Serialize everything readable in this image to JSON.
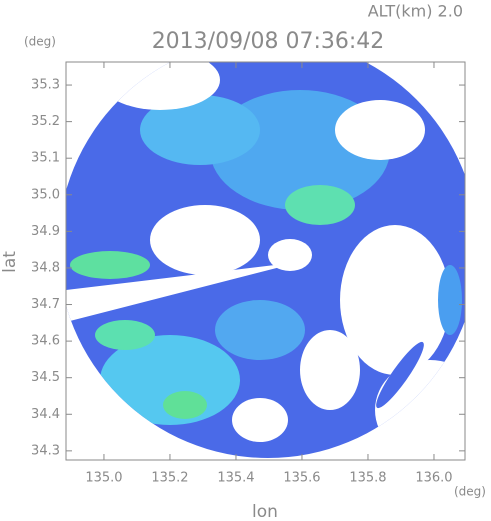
{
  "chart_data": {
    "type": "radar-map",
    "title": "2013/09/08 07:36:42",
    "altitude_label": "ALT(km) 2.0",
    "y_unit": "(deg)",
    "x_unit": "(deg)",
    "xlabel": "lon",
    "ylabel": "lat",
    "xlim": [
      134.885,
      136.094
    ],
    "ylim": [
      34.275,
      35.363
    ],
    "xticks": [
      {
        "value": 135,
        "label": "135.0"
      },
      135.2,
      135.4,
      135.6,
      135.8,
      {
        "value": 136,
        "label": "136.0"
      }
    ],
    "yticks": [
      34.3,
      34.4,
      34.5,
      34.6,
      34.7,
      34.8,
      34.9,
      {
        "value": 35,
        "label": "35.0"
      },
      35.1,
      35.2,
      35.3
    ]
  }
}
